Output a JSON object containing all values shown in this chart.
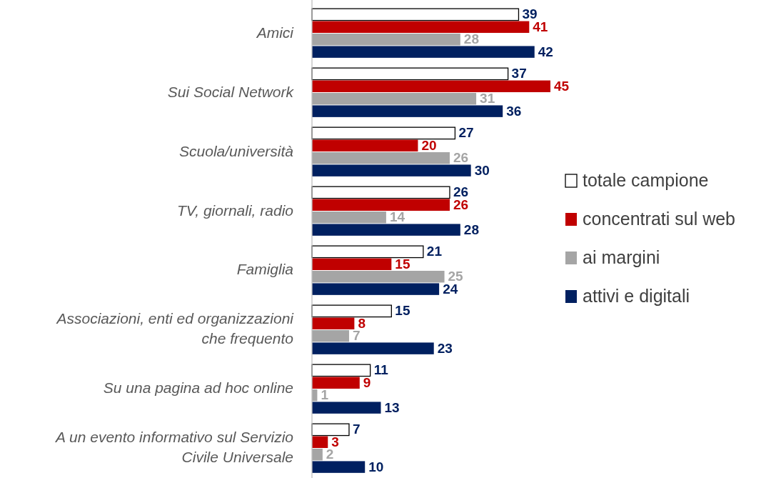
{
  "chart_data": {
    "type": "bar",
    "orientation": "horizontal",
    "categories": [
      "Amici",
      "Sui Social Network",
      "Scuola/università",
      "TV, giornali, radio",
      "Famiglia",
      "Associazioni, enti ed organizzazioni che frequento",
      "Su una pagina ad hoc online",
      "A un evento informativo sul Servizio Civile Universale"
    ],
    "series": [
      {
        "name": "totale campione",
        "color": "#ffffff",
        "values": [
          39,
          37,
          27,
          26,
          21,
          15,
          11,
          7
        ]
      },
      {
        "name": "concentrati sul web",
        "color": "#c00000",
        "values": [
          41,
          45,
          20,
          26,
          15,
          8,
          9,
          3
        ]
      },
      {
        "name": "ai margini",
        "color": "#a5a5a5",
        "values": [
          28,
          31,
          26,
          14,
          25,
          7,
          1,
          2
        ]
      },
      {
        "name": "attivi e digitali",
        "color": "#002060",
        "values": [
          42,
          36,
          30,
          28,
          24,
          23,
          13,
          10
        ]
      }
    ],
    "data_labels": true,
    "legend": "right",
    "grid": false
  }
}
